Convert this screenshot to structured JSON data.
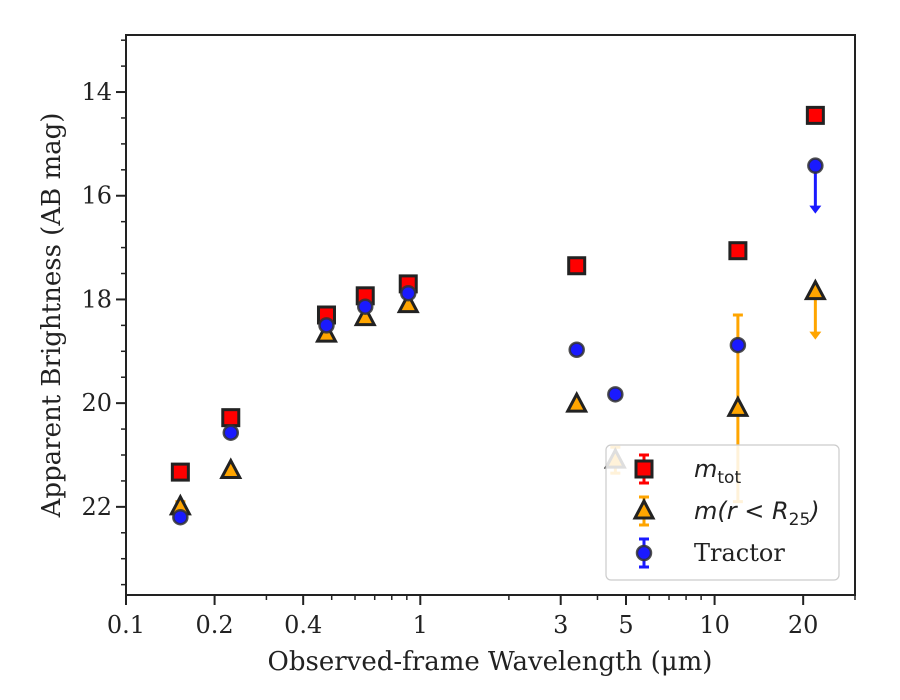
{
  "chart_data": {
    "type": "scatter",
    "xlabel": "Observed-frame Wavelength (μm)",
    "ylabel": "Apparent Brightness (AB mag)",
    "xscale": "log",
    "xlim": [
      0.1,
      30
    ],
    "ylim": [
      23.7,
      12.9
    ],
    "y_inverted": true,
    "xticks": [
      {
        "value": 0.1,
        "label": "0.1"
      },
      {
        "value": 0.2,
        "label": "0.2"
      },
      {
        "value": 0.4,
        "label": "0.4"
      },
      {
        "value": 1,
        "label": "1"
      },
      {
        "value": 3,
        "label": "3"
      },
      {
        "value": 5,
        "label": "5"
      },
      {
        "value": 10,
        "label": "10"
      },
      {
        "value": 20,
        "label": "20"
      }
    ],
    "yticks": [
      {
        "value": 14,
        "label": "14"
      },
      {
        "value": 16,
        "label": "16"
      },
      {
        "value": 18,
        "label": "18"
      },
      {
        "value": 20,
        "label": "20"
      },
      {
        "value": 22,
        "label": "22"
      }
    ],
    "grid": false,
    "legend_position": "lower-right",
    "series": [
      {
        "name": "m_tot",
        "legend": {
          "main": "m",
          "sub": "tot"
        },
        "marker": "square",
        "color": "#ff0000",
        "edge": "#222222",
        "points": [
          {
            "x": 0.153,
            "y": 21.33
          },
          {
            "x": 0.227,
            "y": 20.28
          },
          {
            "x": 0.48,
            "y": 18.3
          },
          {
            "x": 0.65,
            "y": 17.93
          },
          {
            "x": 0.91,
            "y": 17.7
          },
          {
            "x": 3.4,
            "y": 17.35
          },
          {
            "x": 12.0,
            "y": 17.06
          },
          {
            "x": 22.0,
            "y": 14.45
          }
        ]
      },
      {
        "name": "m(r < R25)",
        "legend": {
          "main": "m(r < R",
          "sub": "25",
          "tail": ")"
        },
        "marker": "triangle",
        "color": "#ffa500",
        "edge": "#222222",
        "points": [
          {
            "x": 0.153,
            "y": 22.0,
            "err": 0.1
          },
          {
            "x": 0.227,
            "y": 21.3
          },
          {
            "x": 0.48,
            "y": 18.67
          },
          {
            "x": 0.65,
            "y": 18.35
          },
          {
            "x": 0.91,
            "y": 18.1
          },
          {
            "x": 3.4,
            "y": 20.02
          },
          {
            "x": 4.6,
            "y": 21.1,
            "err": 0.25
          },
          {
            "x": 12.0,
            "y": 20.1,
            "err": 1.8
          },
          {
            "x": 22.0,
            "y": 17.85,
            "upper_limit": true
          }
        ]
      },
      {
        "name": "Tractor",
        "legend": {
          "main": "Tractor"
        },
        "marker": "circle",
        "color": "#1a1aff",
        "edge": "#333333",
        "points": [
          {
            "x": 0.153,
            "y": 22.2
          },
          {
            "x": 0.227,
            "y": 20.57
          },
          {
            "x": 0.48,
            "y": 18.5
          },
          {
            "x": 0.65,
            "y": 18.14
          },
          {
            "x": 0.91,
            "y": 17.88
          },
          {
            "x": 3.4,
            "y": 18.97
          },
          {
            "x": 4.6,
            "y": 19.83
          },
          {
            "x": 12.0,
            "y": 18.88
          },
          {
            "x": 22.0,
            "y": 15.42,
            "upper_limit": true
          }
        ]
      }
    ]
  }
}
